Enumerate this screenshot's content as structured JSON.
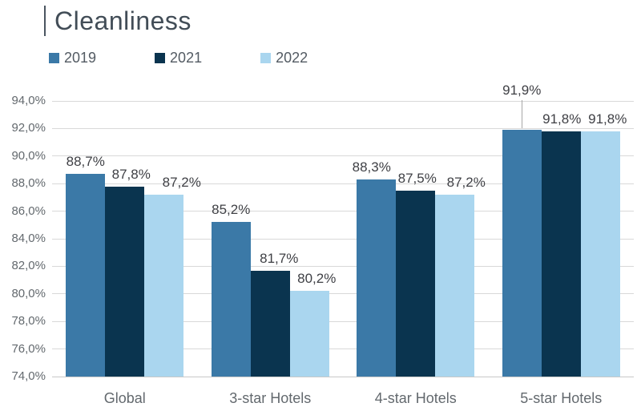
{
  "header": {
    "accent_glyph": "|"
  },
  "chart_data": {
    "type": "bar",
    "title": "Cleanliness",
    "categories": [
      "Global",
      "3-star Hotels",
      "4-star Hotels",
      "5-star Hotels"
    ],
    "series": [
      {
        "name": "2019",
        "color": "#3b79a7",
        "values": [
          88.7,
          85.2,
          88.3,
          91.9
        ]
      },
      {
        "name": "2021",
        "color": "#0a344f",
        "values": [
          87.8,
          81.7,
          87.5,
          91.8
        ]
      },
      {
        "name": "2022",
        "color": "#aad6ef",
        "values": [
          87.2,
          80.2,
          87.2,
          91.8
        ]
      }
    ],
    "ylim": [
      74,
      94
    ],
    "ytick_step": 2,
    "ytick_labels": [
      "74,0%",
      "76,0%",
      "78,0%",
      "80,0%",
      "82,0%",
      "84,0%",
      "86,0%",
      "88,0%",
      "90,0%",
      "92,0%",
      "94,0%"
    ],
    "value_labels": [
      [
        "88,7%",
        "85,2%",
        "88,3%",
        "91,9%"
      ],
      [
        "87,8%",
        "81,7%",
        "87,5%",
        "91,8%"
      ],
      [
        "87,2%",
        "80,2%",
        "87,2%",
        "91,8%"
      ]
    ],
    "grid": true,
    "legend_position": "top-left",
    "data_labels": "outside-end",
    "label_dx": [
      [
        0,
        8,
        22
      ],
      [
        0,
        11,
        9
      ],
      [
        -6,
        2,
        14
      ],
      [
        0,
        1,
        9
      ]
    ],
    "callouts": [
      {
        "series_index": 0,
        "category_index": 3,
        "dy": -34,
        "leader_line": true
      }
    ]
  },
  "colors": {
    "title_text": "#424d57",
    "accent_bar": "#4a5560",
    "legend_text": "#535b63",
    "axis_text": "#63696e",
    "data_label_text": "#3f4045",
    "gridline": "#d9d9d9",
    "axis_line": "#c8c8c8",
    "callout_line": "#a6a6a6",
    "background": "#ffffff"
  }
}
